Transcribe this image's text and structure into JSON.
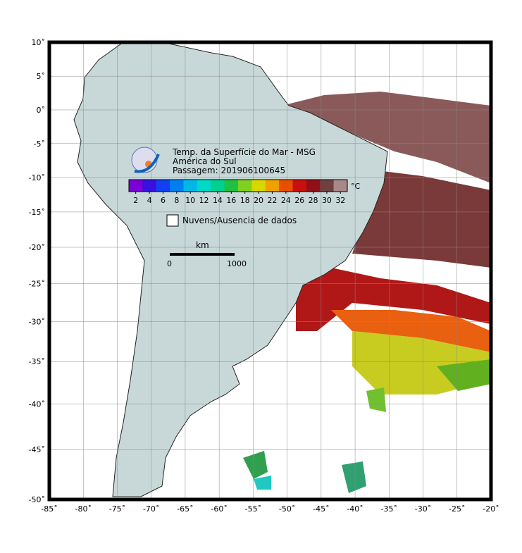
{
  "map": {
    "title": "Temp. da Superfície do Mar - MSG",
    "subtitle": "América do Sul",
    "pass": "Passagem: 201906100645",
    "lon_ticks": [
      {
        "value": -85,
        "label": "-85˚"
      },
      {
        "value": -80,
        "label": "-80˚"
      },
      {
        "value": -75,
        "label": "-75˚"
      },
      {
        "value": -70,
        "label": "-70˚"
      },
      {
        "value": -65,
        "label": "-65˚"
      },
      {
        "value": -60,
        "label": "-60˚"
      },
      {
        "value": -55,
        "label": "-55˚"
      },
      {
        "value": -50,
        "label": "-50˚"
      },
      {
        "value": -45,
        "label": "-45˚"
      },
      {
        "value": -40,
        "label": "-40˚"
      },
      {
        "value": -35,
        "label": "-35˚"
      },
      {
        "value": -30,
        "label": "-30˚"
      },
      {
        "value": -25,
        "label": "-25˚"
      },
      {
        "value": -20,
        "label": "-20˚"
      }
    ],
    "lat_ticks": [
      {
        "value": 10,
        "label": "10˚"
      },
      {
        "value": 5,
        "label": "5˚"
      },
      {
        "value": 0,
        "label": "0˚"
      },
      {
        "value": -5,
        "label": "-5˚"
      },
      {
        "value": -10,
        "label": "-10˚"
      },
      {
        "value": -15,
        "label": "-15˚"
      },
      {
        "value": -20,
        "label": "-20˚"
      },
      {
        "value": -25,
        "label": "-25˚"
      },
      {
        "value": -30,
        "label": "-30˚"
      },
      {
        "value": -35,
        "label": "-35˚"
      },
      {
        "value": -40,
        "label": "-40˚"
      },
      {
        "value": -45,
        "label": "-45˚"
      },
      {
        "value": -50,
        "label": "-50˚"
      }
    ],
    "colorbar": {
      "ticks": [
        2,
        4,
        6,
        8,
        10,
        12,
        14,
        16,
        18,
        20,
        22,
        24,
        26,
        28,
        30,
        32
      ],
      "unit": "°C",
      "colors": [
        "#7a00d6",
        "#3a10e0",
        "#1040f0",
        "#0080f0",
        "#00b8e8",
        "#00d8c8",
        "#00d090",
        "#20c040",
        "#80d020",
        "#d8d800",
        "#f0a000",
        "#e85000",
        "#c81010",
        "#901018",
        "#704040",
        "#a88888"
      ]
    },
    "legend": "Nuvens/Ausencia de dados",
    "scale": {
      "unit": "km",
      "start": "0",
      "end": "1000"
    }
  }
}
